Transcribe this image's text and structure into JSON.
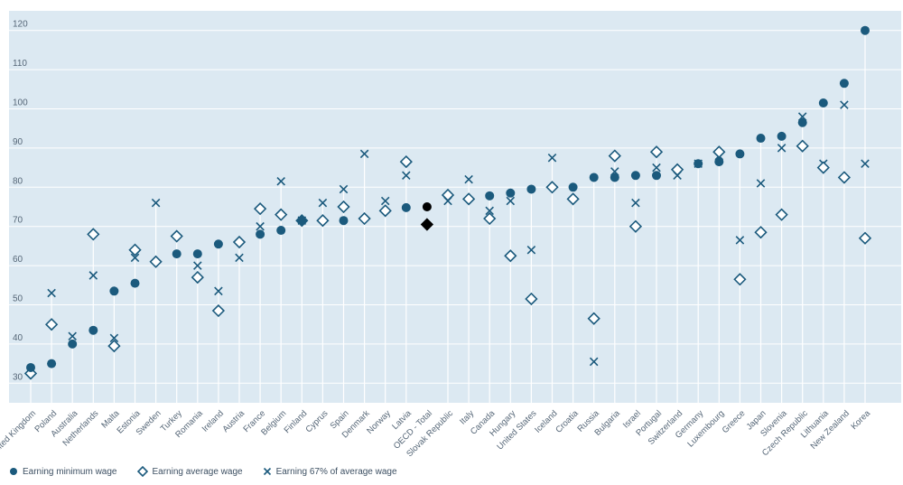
{
  "chart_data": {
    "type": "scatter",
    "ylim": [
      25,
      125
    ],
    "y_ticks": [
      30,
      40,
      50,
      60,
      70,
      80,
      90,
      100,
      110,
      120
    ],
    "grid": "horizontal",
    "legend_position": "bottom-left",
    "colors": {
      "background": "#dce9f2",
      "grid": "#ffffff",
      "min_wage": "#1b5a7d",
      "avg_wage": "#1b5a7d",
      "pct67": "#1b5a7d",
      "connector": "#ffffff",
      "oecd_total": "#000000",
      "axis_text": "#556677"
    },
    "categories": [
      "United Kingdom",
      "Poland",
      "Australia",
      "Netherlands",
      "Malta",
      "Estonia",
      "Sweden",
      "Turkey",
      "Romania",
      "Ireland",
      "Austria",
      "France",
      "Belgium",
      "Finland",
      "Cyprus",
      "Spain",
      "Denmark",
      "Norway",
      "Latvia",
      "OECD - Total",
      "Slovak Republic",
      "Italy",
      "Canada",
      "Hungary",
      "United States",
      "Iceland",
      "Croatia",
      "Russia",
      "Bulgaria",
      "Israel",
      "Portugal",
      "Switzerland",
      "Germany",
      "Luxembourg",
      "Greece",
      "Japan",
      "Slovenia",
      "Czech Republic",
      "Lithuania",
      "New Zealand",
      "Korea"
    ],
    "highlight_category": "OECD - Total",
    "series": [
      {
        "name": "Earning minimum wage",
        "marker": "circle",
        "values": [
          34,
          35,
          40,
          43.5,
          53.5,
          55.5,
          null,
          63,
          63,
          65.5,
          null,
          68,
          69,
          71.5,
          null,
          71.5,
          null,
          null,
          74.8,
          75,
          null,
          null,
          77.8,
          78.5,
          79.5,
          null,
          80,
          82.5,
          82.5,
          83,
          83,
          null,
          86,
          86.5,
          88.5,
          92.5,
          93,
          96.5,
          101.5,
          106.5,
          120
        ]
      },
      {
        "name": "Earning average wage",
        "marker": "diamond",
        "values": [
          32.5,
          45,
          null,
          68,
          39.5,
          64,
          61,
          67.5,
          57,
          48.5,
          66,
          74.5,
          73,
          71.5,
          71.5,
          75,
          72,
          74,
          86.5,
          70.5,
          78,
          77,
          72,
          62.5,
          51.5,
          80,
          77,
          46.5,
          88,
          70,
          89,
          84.5,
          null,
          89,
          56.5,
          68.5,
          73,
          90.5,
          85,
          82.5,
          67
        ]
      },
      {
        "name": "Earning 67% of average wage",
        "marker": "x",
        "values": [
          null,
          53,
          42,
          57.5,
          41.5,
          62,
          76,
          null,
          60,
          53.5,
          62,
          70,
          81.5,
          71.5,
          76,
          79.5,
          88.5,
          76.5,
          83,
          null,
          76.5,
          82,
          74,
          76.5,
          64,
          87.5,
          null,
          35.5,
          84,
          76,
          85,
          83,
          86,
          88,
          66.5,
          81,
          90,
          98,
          86,
          101,
          86
        ]
      }
    ]
  },
  "legend": {
    "min_wage_label": "Earning minimum wage",
    "avg_wage_label": "Earning average wage",
    "pct67_label": "Earning 67% of average wage"
  }
}
